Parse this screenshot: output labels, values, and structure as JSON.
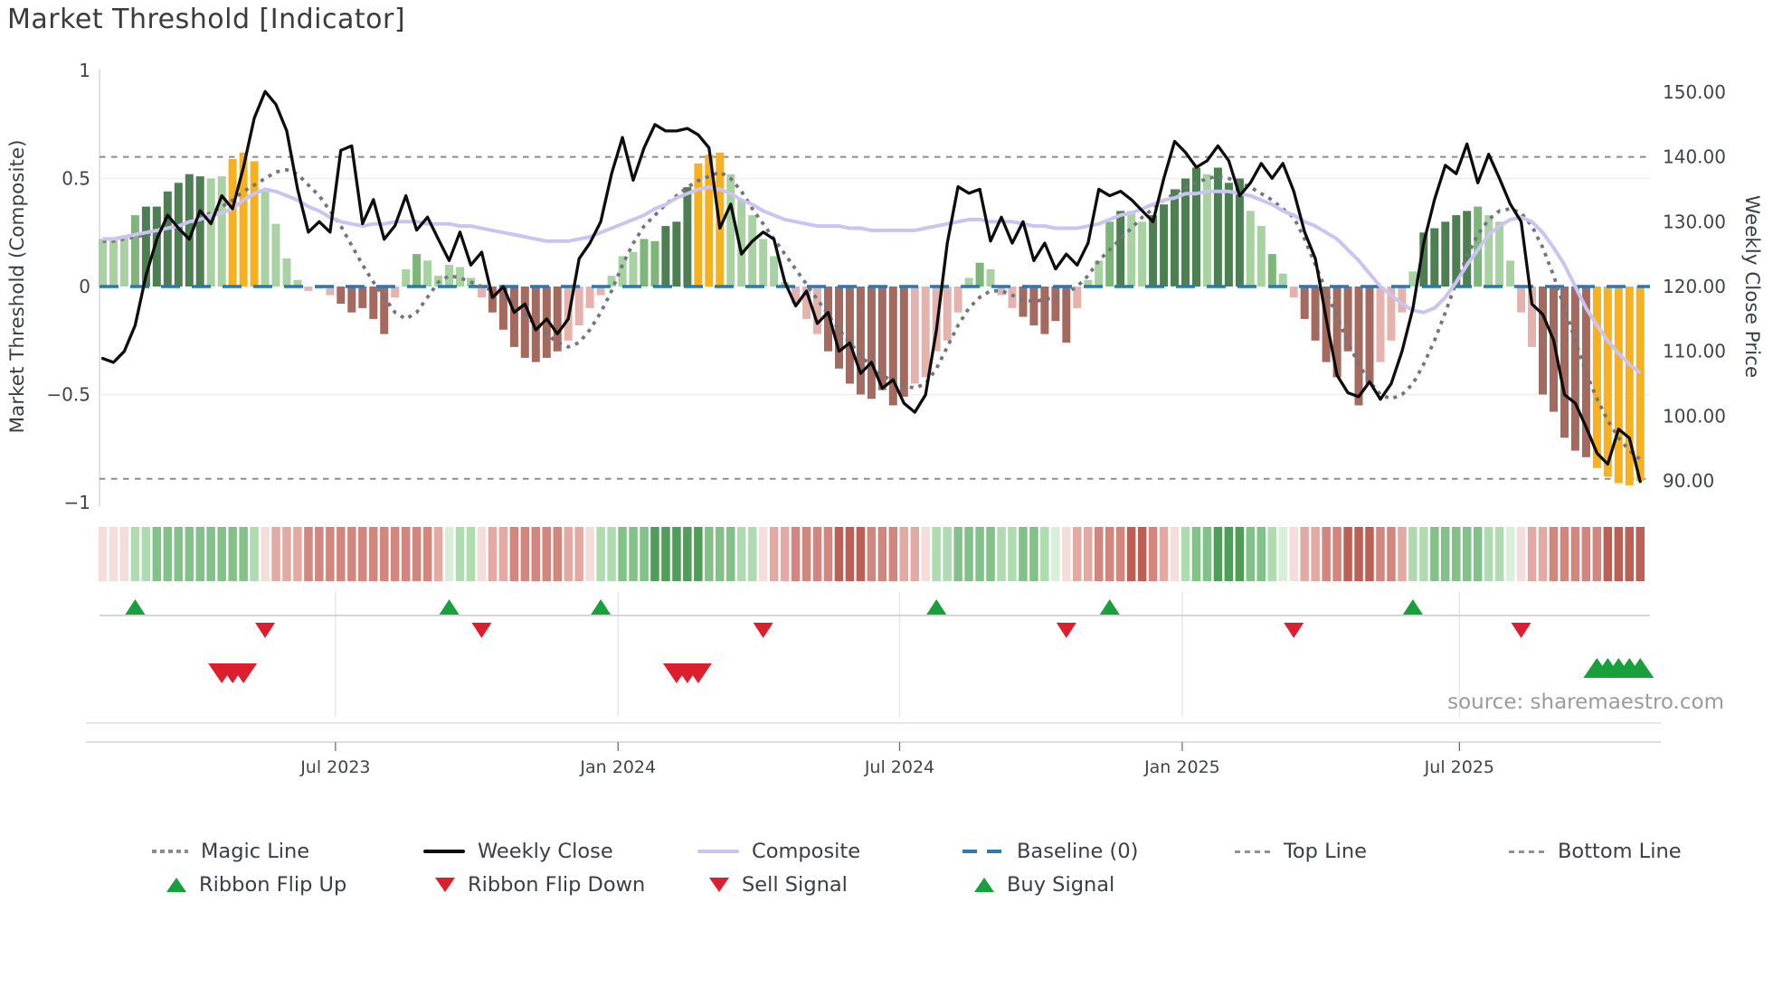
{
  "title": "Market Threshold [Indicator]",
  "source": "source: sharemaestro.com",
  "legend": {
    "row1": [
      {
        "label": "Magic Line"
      },
      {
        "label": "Weekly Close"
      },
      {
        "label": "Composite"
      },
      {
        "label": "Baseline (0)"
      },
      {
        "label": "Top Line"
      },
      {
        "label": "Bottom Line"
      }
    ],
    "row2": [
      {
        "label": "Ribbon Flip Up"
      },
      {
        "label": "Ribbon Flip Down"
      },
      {
        "label": "Sell Signal"
      },
      {
        "label": "Buy Signal"
      }
    ]
  },
  "colors": {
    "bar_light_green": "#a9d2a3",
    "bar_mid_green": "#7db57b",
    "bar_dark_green": "#4d7f53",
    "bar_yellow": "#f7b11e",
    "bar_light_red": "#e6b2ad",
    "bar_dark_red": "#a46a5f",
    "weekly_close_line": "#0d0d0d",
    "composite_line": "#cbc3f0",
    "magic_line": "#72757d",
    "baseline_blue": "#2878b6",
    "threshold_gray": "#898d93",
    "flip_up_green": "#18a03c",
    "flip_down_red": "#dc1f2e",
    "ribbon_green_3": "#4f9d58",
    "ribbon_green_2": "#82c187",
    "ribbon_green_1": "#aedbb0",
    "ribbon_green_0": "#d9efda",
    "ribbon_red_0": "#f4dedb",
    "ribbon_red_1": "#e2aaa3",
    "ribbon_red_2": "#d2867d",
    "ribbon_red_3": "#bd5f55"
  },
  "chart_data": {
    "type": "mixed",
    "description": "Weekly market-threshold composite histogram with weekly close price overlay, trend ribbon and trade signals",
    "left_axis": {
      "label": "Market Threshold (Composite)",
      "tick_labels": [
        "1",
        "0.5",
        "0",
        "−0.5",
        "−1"
      ],
      "tick_values": [
        1,
        0.5,
        0,
        -0.5,
        -1
      ],
      "range": [
        -1,
        1
      ]
    },
    "right_axis": {
      "label": "Weekly Close Price",
      "tick_labels": [
        "150.00",
        "140.00",
        "130.00",
        "120.00",
        "110.00",
        "100.00",
        "90.00"
      ],
      "tick_values": [
        150,
        140,
        130,
        120,
        110,
        100,
        90
      ]
    },
    "x_axis": {
      "tick_labels": [
        "Jul 2023",
        "Jan 2024",
        "Jul 2024",
        "Jan 2025",
        "Jul 2025"
      ],
      "tick_weeks": [
        21.5,
        47.6,
        73.6,
        99.7,
        125.3
      ],
      "n_weeks": 143
    },
    "reference_lines": {
      "baseline": 0,
      "top_line": 0.6,
      "bottom_line": -0.89
    },
    "grid_values": [
      0.5,
      -0.5
    ],
    "series": {
      "market_threshold_bars": {
        "values": [
          0.22,
          0.22,
          0.23,
          0.33,
          0.37,
          0.37,
          0.44,
          0.48,
          0.52,
          0.51,
          0.5,
          0.51,
          0.59,
          0.62,
          0.58,
          0.44,
          0.29,
          0.13,
          0.03,
          -0.02,
          -0.01,
          -0.04,
          -0.08,
          -0.12,
          -0.1,
          -0.15,
          -0.22,
          -0.05,
          0.08,
          0.15,
          0.12,
          0.05,
          0.1,
          0.09,
          0.04,
          -0.05,
          -0.12,
          -0.2,
          -0.28,
          -0.33,
          -0.35,
          -0.33,
          -0.3,
          -0.25,
          -0.18,
          -0.1,
          -0.04,
          0.05,
          0.14,
          0.16,
          0.22,
          0.21,
          0.28,
          0.3,
          0.46,
          0.57,
          0.61,
          0.62,
          0.52,
          0.4,
          0.33,
          0.22,
          0.14,
          0.02,
          -0.08,
          -0.15,
          -0.22,
          -0.3,
          -0.38,
          -0.45,
          -0.5,
          -0.52,
          -0.48,
          -0.55,
          -0.51,
          -0.45,
          -0.42,
          -0.3,
          -0.25,
          -0.12,
          0.04,
          0.11,
          0.08,
          -0.04,
          -0.1,
          -0.14,
          -0.18,
          -0.22,
          -0.16,
          -0.26,
          -0.1,
          0.03,
          0.12,
          0.3,
          0.35,
          0.35,
          0.3,
          0.33,
          0.38,
          0.45,
          0.5,
          0.55,
          0.52,
          0.55,
          0.48,
          0.5,
          0.35,
          0.28,
          0.15,
          0.06,
          -0.05,
          -0.15,
          -0.25,
          -0.35,
          -0.42,
          -0.3,
          -0.55,
          -0.45,
          -0.35,
          -0.25,
          -0.12,
          0.07,
          0.25,
          0.27,
          0.3,
          0.33,
          0.35,
          0.37,
          0.33,
          0.3,
          0.12,
          -0.12,
          -0.28,
          -0.5,
          -0.58,
          -0.7,
          -0.76,
          -0.79,
          -0.84,
          -0.88,
          -0.91,
          -0.92,
          -0.9
        ],
        "shades": [
          "lg",
          "lg",
          "lg",
          "mg",
          "dg",
          "dg",
          "dg",
          "dg",
          "dg",
          "dg",
          "lg",
          "lg",
          "yl",
          "yl",
          "yl",
          "lg",
          "lg",
          "lg",
          "lg",
          "lp",
          "lp",
          "lp",
          "dr",
          "dr",
          "dr",
          "dr",
          "dr",
          "lp",
          "lg",
          "mg",
          "lg",
          "lg",
          "lg",
          "lg",
          "lg",
          "lp",
          "dr",
          "dr",
          "dr",
          "dr",
          "dr",
          "dr",
          "dr",
          "lp",
          "lp",
          "lp",
          "lp",
          "lg",
          "lg",
          "lg",
          "mg",
          "mg",
          "dg",
          "dg",
          "dg",
          "yl",
          "yl",
          "yl",
          "lg",
          "lg",
          "lg",
          "lg",
          "lg",
          "lg",
          "lp",
          "lp",
          "lp",
          "dr",
          "dr",
          "dr",
          "dr",
          "dr",
          "dr",
          "dr",
          "dr",
          "lp",
          "lp",
          "lp",
          "lp",
          "lp",
          "lg",
          "mg",
          "lg",
          "lp",
          "lp",
          "dr",
          "dr",
          "dr",
          "dr",
          "dr",
          "lp",
          "lg",
          "lg",
          "mg",
          "dg",
          "lg",
          "lg",
          "dg",
          "dg",
          "dg",
          "dg",
          "dg",
          "lg",
          "dg",
          "dg",
          "dg",
          "lg",
          "lg",
          "mg",
          "lg",
          "lp",
          "dr",
          "dr",
          "dr",
          "dr",
          "dr",
          "dr",
          "dr",
          "lp",
          "lp",
          "lp",
          "lg",
          "dg",
          "dg",
          "dg",
          "dg",
          "dg",
          "mg",
          "lg",
          "lg",
          "lg",
          "lp",
          "lp",
          "dr",
          "dr",
          "dr",
          "dr",
          "dr",
          "yl",
          "yl",
          "yl",
          "yl",
          "yl"
        ]
      },
      "weekly_close": [
        108.9,
        108.3,
        110.0,
        114.0,
        121.7,
        127.3,
        131.0,
        129.0,
        127.3,
        131.7,
        129.7,
        134.0,
        132.0,
        138.4,
        146.0,
        150.1,
        148.1,
        144.0,
        135.0,
        128.4,
        130.0,
        128.4,
        141.0,
        141.7,
        129.7,
        133.4,
        127.3,
        129.4,
        134.0,
        128.7,
        130.7,
        127.3,
        124.0,
        128.4,
        123.3,
        125.3,
        118.3,
        120.0,
        116.0,
        117.3,
        113.3,
        115.0,
        112.7,
        115.0,
        124.3,
        126.7,
        130.0,
        137.4,
        143.0,
        136.4,
        141.4,
        145.0,
        144.0,
        144.0,
        144.4,
        143.4,
        141.4,
        129.0,
        132.7,
        125.0,
        127.0,
        128.4,
        127.3,
        120.7,
        117.0,
        119.3,
        114.3,
        116.0,
        110.0,
        111.3,
        106.6,
        108.3,
        104.3,
        105.6,
        102.0,
        100.6,
        103.3,
        113.3,
        126.7,
        135.4,
        134.4,
        135.0,
        127.0,
        130.7,
        126.7,
        130.0,
        124.0,
        126.7,
        122.7,
        125.0,
        123.3,
        126.7,
        135.0,
        134.0,
        134.7,
        133.4,
        131.7,
        130.0,
        136.7,
        142.4,
        140.7,
        138.4,
        139.4,
        141.7,
        139.4,
        134.0,
        136.0,
        139.0,
        136.7,
        139.0,
        134.7,
        128.4,
        124.3,
        115.0,
        106.3,
        103.6,
        103.0,
        105.3,
        102.6,
        105.0,
        110.0,
        116.6,
        126.7,
        133.4,
        138.7,
        137.4,
        142.0,
        136.0,
        140.4,
        136.7,
        132.7,
        130.0,
        117.3,
        115.7,
        111.7,
        103.3,
        102.0,
        98.3,
        94.3,
        92.6,
        98.0,
        96.6,
        89.9
      ],
      "composite": [
        0.22,
        0.22,
        0.23,
        0.24,
        0.25,
        0.26,
        0.27,
        0.28,
        0.3,
        0.31,
        0.33,
        0.34,
        0.36,
        0.4,
        0.43,
        0.45,
        0.44,
        0.42,
        0.4,
        0.37,
        0.35,
        0.32,
        0.3,
        0.29,
        0.28,
        0.29,
        0.29,
        0.3,
        0.3,
        0.3,
        0.29,
        0.29,
        0.29,
        0.28,
        0.28,
        0.27,
        0.26,
        0.25,
        0.24,
        0.23,
        0.22,
        0.21,
        0.21,
        0.21,
        0.22,
        0.23,
        0.25,
        0.27,
        0.29,
        0.31,
        0.33,
        0.36,
        0.38,
        0.41,
        0.43,
        0.45,
        0.46,
        0.45,
        0.43,
        0.4,
        0.38,
        0.35,
        0.33,
        0.31,
        0.3,
        0.29,
        0.28,
        0.28,
        0.28,
        0.27,
        0.27,
        0.26,
        0.26,
        0.26,
        0.26,
        0.26,
        0.27,
        0.28,
        0.29,
        0.3,
        0.31,
        0.31,
        0.3,
        0.3,
        0.3,
        0.29,
        0.28,
        0.28,
        0.27,
        0.27,
        0.27,
        0.28,
        0.29,
        0.31,
        0.33,
        0.34,
        0.36,
        0.38,
        0.4,
        0.41,
        0.43,
        0.43,
        0.44,
        0.44,
        0.44,
        0.43,
        0.42,
        0.4,
        0.38,
        0.35,
        0.33,
        0.3,
        0.28,
        0.25,
        0.22,
        0.17,
        0.12,
        0.06,
        0.0,
        -0.04,
        -0.08,
        -0.11,
        -0.12,
        -0.1,
        -0.05,
        0.02,
        0.1,
        0.17,
        0.24,
        0.28,
        0.31,
        0.32,
        0.3,
        0.25,
        0.18,
        0.1,
        0.0,
        -0.1,
        -0.18,
        -0.25,
        -0.31,
        -0.36,
        -0.4
      ],
      "magic_line": [
        0.21,
        0.21,
        0.22,
        0.23,
        0.24,
        0.25,
        0.27,
        0.28,
        0.3,
        0.32,
        0.34,
        0.37,
        0.4,
        0.44,
        0.47,
        0.5,
        0.53,
        0.54,
        0.52,
        0.47,
        0.42,
        0.35,
        0.28,
        0.19,
        0.1,
        0.02,
        -0.05,
        -0.12,
        -0.15,
        -0.12,
        -0.05,
        0.02,
        0.05,
        0.04,
        0.02,
        0.0,
        -0.02,
        -0.05,
        -0.08,
        -0.13,
        -0.18,
        -0.22,
        -0.26,
        -0.28,
        -0.26,
        -0.2,
        -0.12,
        -0.02,
        0.1,
        0.2,
        0.28,
        0.33,
        0.38,
        0.42,
        0.46,
        0.49,
        0.51,
        0.53,
        0.5,
        0.44,
        0.36,
        0.29,
        0.22,
        0.15,
        0.08,
        0.01,
        -0.06,
        -0.13,
        -0.2,
        -0.26,
        -0.32,
        -0.37,
        -0.41,
        -0.44,
        -0.46,
        -0.47,
        -0.45,
        -0.38,
        -0.28,
        -0.18,
        -0.1,
        -0.05,
        -0.02,
        -0.02,
        -0.04,
        -0.06,
        -0.07,
        -0.06,
        -0.05,
        -0.03,
        0.0,
        0.05,
        0.12,
        0.17,
        0.22,
        0.27,
        0.32,
        0.36,
        0.4,
        0.43,
        0.46,
        0.48,
        0.5,
        0.51,
        0.5,
        0.48,
        0.46,
        0.43,
        0.4,
        0.36,
        0.32,
        0.22,
        0.1,
        -0.02,
        -0.14,
        -0.26,
        -0.36,
        -0.44,
        -0.5,
        -0.52,
        -0.5,
        -0.45,
        -0.36,
        -0.25,
        -0.12,
        0.02,
        0.14,
        0.24,
        0.31,
        0.35,
        0.36,
        0.34,
        0.28,
        0.18,
        0.05,
        -0.1,
        -0.25,
        -0.4,
        -0.52,
        -0.62,
        -0.7,
        -0.76,
        -0.8
      ],
      "ribbon": [
        "r0",
        "r0",
        "r0",
        "g1",
        "g1",
        "g2",
        "g2",
        "g2",
        "g2",
        "g2",
        "g2",
        "g2",
        "g2",
        "g2",
        "g1",
        "r0",
        "r1",
        "r1",
        "r1",
        "r2",
        "r2",
        "r2",
        "r2",
        "r2",
        "r2",
        "r2",
        "r2",
        "r2",
        "r2",
        "r2",
        "r2",
        "r1",
        "g0",
        "g1",
        "g1",
        "r0",
        "r1",
        "r1",
        "r2",
        "r2",
        "r2",
        "r2",
        "r2",
        "r1",
        "r1",
        "r0",
        "g1",
        "g1",
        "g2",
        "g2",
        "g2",
        "g3",
        "g3",
        "g3",
        "g3",
        "g3",
        "g2",
        "g2",
        "g2",
        "g1",
        "g1",
        "r0",
        "r1",
        "r1",
        "r2",
        "r2",
        "r2",
        "r2",
        "r3",
        "r3",
        "r3",
        "r2",
        "r2",
        "r2",
        "r1",
        "r1",
        "r0",
        "g1",
        "g1",
        "g2",
        "g2",
        "g2",
        "g2",
        "g1",
        "g1",
        "g2",
        "g2",
        "g1",
        "g0",
        "r0",
        "r1",
        "r1",
        "r2",
        "r2",
        "r2",
        "r3",
        "r3",
        "r2",
        "r1",
        "r0",
        "g1",
        "g2",
        "g2",
        "g3",
        "g3",
        "g3",
        "g2",
        "g2",
        "g1",
        "g0",
        "r0",
        "r1",
        "r1",
        "r2",
        "r2",
        "r3",
        "r3",
        "r3",
        "r2",
        "r2",
        "r1",
        "g1",
        "g1",
        "g2",
        "g2",
        "g2",
        "g2",
        "g2",
        "g1",
        "g1",
        "g0",
        "r0",
        "r1",
        "r1",
        "r2",
        "r2",
        "r2",
        "r2",
        "r2",
        "r3",
        "r3",
        "r3",
        "r3"
      ]
    },
    "signals": {
      "ribbon_flip_up_weeks": [
        3,
        32,
        46,
        77,
        93,
        121
      ],
      "ribbon_flip_down_weeks": [
        15,
        35,
        61,
        89,
        110,
        131
      ],
      "sell_signal_weeks": [
        11,
        12,
        13,
        53,
        54,
        55
      ],
      "buy_signal_weeks": [
        138,
        139,
        140,
        141,
        142
      ]
    }
  }
}
